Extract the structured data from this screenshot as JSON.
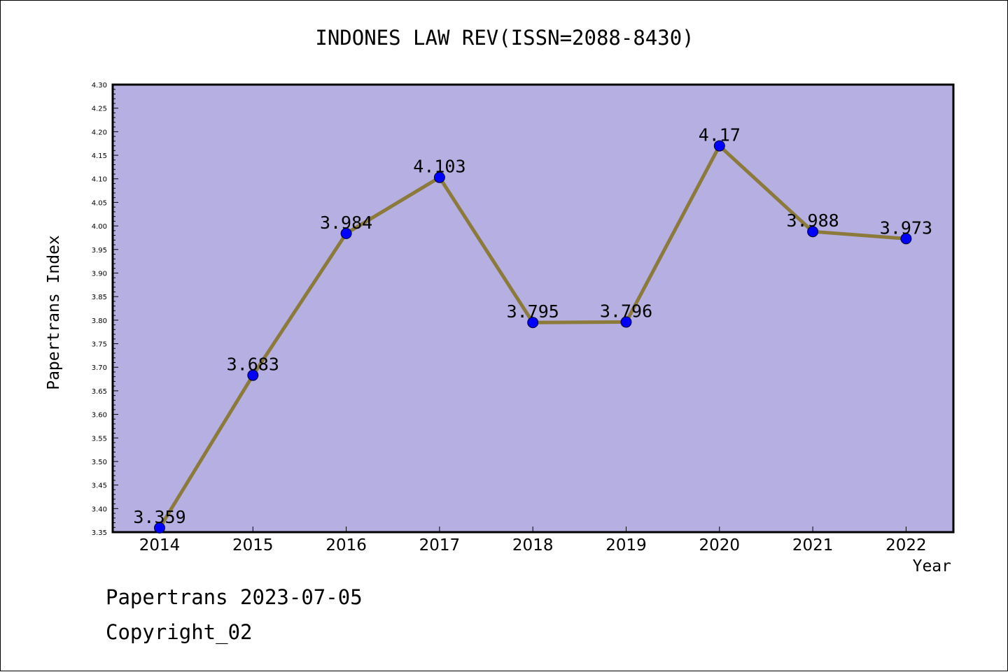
{
  "chart_data": {
    "type": "line",
    "title": "INDONES LAW REV(ISSN=2088-8430)",
    "xlabel": "Year",
    "ylabel": "Papertrans Index",
    "categories": [
      "2014",
      "2015",
      "2016",
      "2017",
      "2018",
      "2019",
      "2020",
      "2021",
      "2022"
    ],
    "values": [
      3.359,
      3.683,
      3.984,
      4.103,
      3.795,
      3.796,
      4.17,
      3.988,
      3.973
    ],
    "data_labels": [
      "3.359",
      "3.683",
      "3.984",
      "4.103",
      "3.795",
      "3.796",
      "4.17",
      "3.988",
      "3.973"
    ],
    "ylim": [
      3.35,
      4.3
    ],
    "y_ticks": [
      "3.35",
      "3.40",
      "3.45",
      "3.50",
      "3.55",
      "3.60",
      "3.65",
      "3.70",
      "3.75",
      "3.80",
      "3.85",
      "3.90",
      "3.95",
      "4.00",
      "4.05",
      "4.10",
      "4.15",
      "4.20",
      "4.25",
      "4.30"
    ],
    "grid": false,
    "colors": {
      "plot_background": "#b5afe2",
      "line": "#8b7a3a",
      "marker": "#0000ff",
      "axis": "#000000"
    }
  },
  "footer": {
    "date_text": "Papertrans 2023-07-05",
    "copyright_text": "Copyright_02"
  }
}
